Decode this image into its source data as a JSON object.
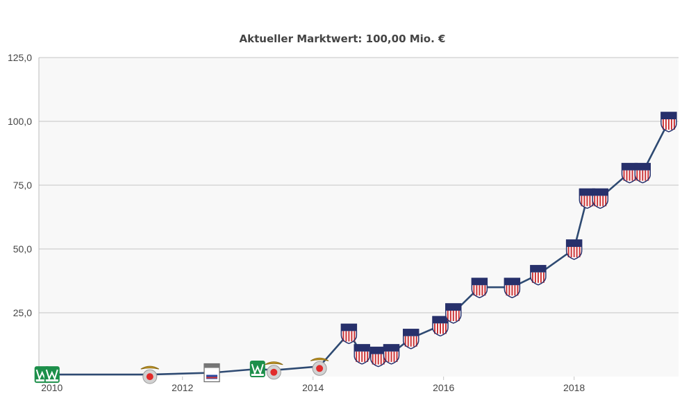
{
  "chart_data": {
    "type": "line",
    "title": "Aktueller Marktwert: 100,00 Mio. €",
    "xlabel": "",
    "ylabel": "",
    "xlim": [
      2009.8,
      2019.6
    ],
    "ylim": [
      0,
      125
    ],
    "y_ticks": [
      {
        "value": 25,
        "label": "25,0"
      },
      {
        "value": 50,
        "label": "50,0"
      },
      {
        "value": 75,
        "label": "75,0"
      },
      {
        "value": 100,
        "label": "100,0"
      },
      {
        "value": 125,
        "label": "125,0"
      }
    ],
    "x_ticks": [
      {
        "value": 2010,
        "label": "2010"
      },
      {
        "value": 2012,
        "label": "2012"
      },
      {
        "value": 2014,
        "label": "2014"
      },
      {
        "value": 2016,
        "label": "2016"
      },
      {
        "value": 2018,
        "label": "2018"
      }
    ],
    "grid": true,
    "line_color": "#2e4a72",
    "plot_background": "#f8f8f8",
    "series": [
      {
        "values": [
          {
            "x": 2009.85,
            "y": 0.8,
            "club": "rio-ave-icon"
          },
          {
            "x": 2010.0,
            "y": 0.8,
            "club": "rio-ave-icon"
          },
          {
            "x": 2011.5,
            "y": 0.8,
            "club": "benfica-icon"
          },
          {
            "x": 2012.45,
            "y": 1.5,
            "club": "vitoria-icon"
          },
          {
            "x": 2013.15,
            "y": 3,
            "club": "rio-ave-icon"
          },
          {
            "x": 2013.4,
            "y": 2.5,
            "club": "benfica-icon"
          },
          {
            "x": 2014.1,
            "y": 4,
            "club": "benfica-icon"
          },
          {
            "x": 2014.55,
            "y": 17,
            "club": "atletico-icon"
          },
          {
            "x": 2014.75,
            "y": 9,
            "club": "atletico-icon"
          },
          {
            "x": 2015.0,
            "y": 8,
            "club": "atletico-icon"
          },
          {
            "x": 2015.2,
            "y": 9,
            "club": "atletico-icon"
          },
          {
            "x": 2015.5,
            "y": 15,
            "club": "atletico-icon"
          },
          {
            "x": 2015.95,
            "y": 20,
            "club": "atletico-icon"
          },
          {
            "x": 2016.15,
            "y": 25,
            "club": "atletico-icon"
          },
          {
            "x": 2016.55,
            "y": 35,
            "club": "atletico-icon"
          },
          {
            "x": 2017.05,
            "y": 35,
            "club": "atletico-icon"
          },
          {
            "x": 2017.45,
            "y": 40,
            "club": "atletico-icon"
          },
          {
            "x": 2018.0,
            "y": 50,
            "club": "atletico-icon"
          },
          {
            "x": 2018.2,
            "y": 70,
            "club": "atletico-icon"
          },
          {
            "x": 2018.4,
            "y": 70,
            "club": "atletico-icon"
          },
          {
            "x": 2018.85,
            "y": 80,
            "club": "atletico-icon"
          },
          {
            "x": 2019.05,
            "y": 80,
            "club": "atletico-icon"
          },
          {
            "x": 2019.45,
            "y": 100,
            "club": "atletico-icon"
          }
        ]
      }
    ]
  }
}
